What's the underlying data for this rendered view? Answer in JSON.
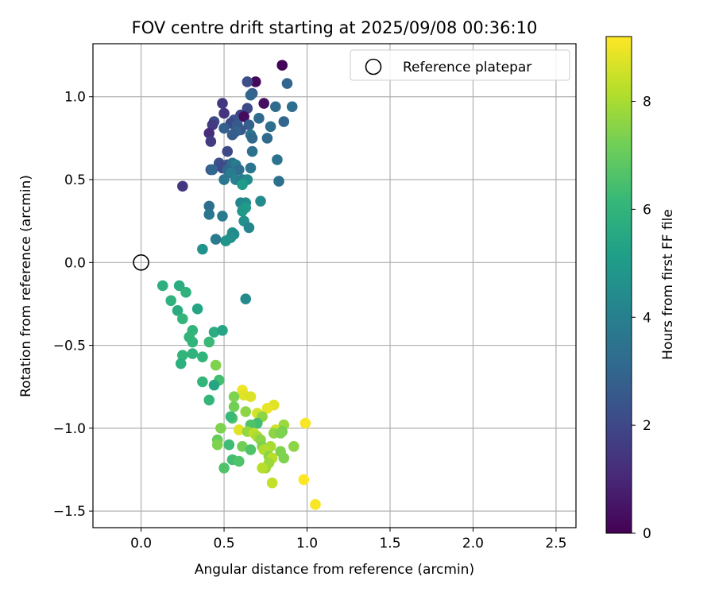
{
  "chart_data": {
    "type": "scatter",
    "title": "FOV centre drift starting at 2025/09/08 00:36:10",
    "xlabel": "Angular distance from reference (arcmin)",
    "ylabel": "Rotation from reference (arcmin)",
    "xlim": [
      -0.29,
      2.62
    ],
    "ylim": [
      -1.6,
      1.32
    ],
    "xticks": [
      "0.0",
      "0.5",
      "1.0",
      "1.5",
      "2.0",
      "2.5"
    ],
    "yticks": [
      "1.0",
      "0.5",
      "0.0",
      "−0.5",
      "−1.0",
      "−1.5"
    ],
    "grid": true,
    "legend": {
      "position": "top-right",
      "entries": [
        "Reference platepar"
      ]
    },
    "reference_point": {
      "x": 0.0,
      "y": 0.0
    },
    "colorbar": {
      "label": "Hours from first FF file",
      "colormap": "viridis",
      "range": [
        0,
        9.2
      ],
      "ticks": [
        "0",
        "2",
        "4",
        "6",
        "8"
      ]
    },
    "points": [
      {
        "x": 0.85,
        "y": 1.19,
        "c": 0.1
      },
      {
        "x": 0.69,
        "y": 1.09,
        "c": 0.2
      },
      {
        "x": 0.64,
        "y": 1.09,
        "c": 2.2
      },
      {
        "x": 0.88,
        "y": 1.08,
        "c": 3.0
      },
      {
        "x": 0.67,
        "y": 1.02,
        "c": 2.7
      },
      {
        "x": 0.66,
        "y": 1.01,
        "c": 3.0
      },
      {
        "x": 0.74,
        "y": 0.96,
        "c": 0.4
      },
      {
        "x": 0.49,
        "y": 0.96,
        "c": 1.5
      },
      {
        "x": 0.81,
        "y": 0.94,
        "c": 3.2
      },
      {
        "x": 0.91,
        "y": 0.94,
        "c": 3.3
      },
      {
        "x": 0.64,
        "y": 0.93,
        "c": 2.0
      },
      {
        "x": 0.5,
        "y": 0.9,
        "c": 1.4
      },
      {
        "x": 0.6,
        "y": 0.89,
        "c": 1.8
      },
      {
        "x": 0.62,
        "y": 0.88,
        "c": 0.3
      },
      {
        "x": 0.71,
        "y": 0.87,
        "c": 3.2
      },
      {
        "x": 0.56,
        "y": 0.86,
        "c": 2.3
      },
      {
        "x": 0.86,
        "y": 0.85,
        "c": 3.0
      },
      {
        "x": 0.44,
        "y": 0.85,
        "c": 2.1
      },
      {
        "x": 0.54,
        "y": 0.84,
        "c": 2.0
      },
      {
        "x": 0.43,
        "y": 0.83,
        "c": 1.6
      },
      {
        "x": 0.65,
        "y": 0.83,
        "c": 2.8
      },
      {
        "x": 0.58,
        "y": 0.83,
        "c": 2.6
      },
      {
        "x": 0.78,
        "y": 0.82,
        "c": 3.4
      },
      {
        "x": 0.5,
        "y": 0.81,
        "c": 2.8
      },
      {
        "x": 0.6,
        "y": 0.8,
        "c": 2.5
      },
      {
        "x": 0.57,
        "y": 0.79,
        "c": 2.9
      },
      {
        "x": 0.41,
        "y": 0.78,
        "c": 1.2
      },
      {
        "x": 0.66,
        "y": 0.77,
        "c": 3.5
      },
      {
        "x": 0.55,
        "y": 0.77,
        "c": 2.7
      },
      {
        "x": 0.67,
        "y": 0.75,
        "c": 3.1
      },
      {
        "x": 0.76,
        "y": 0.75,
        "c": 3.2
      },
      {
        "x": 0.42,
        "y": 0.73,
        "c": 1.6
      },
      {
        "x": 0.52,
        "y": 0.67,
        "c": 2.0
      },
      {
        "x": 0.67,
        "y": 0.67,
        "c": 3.4
      },
      {
        "x": 0.82,
        "y": 0.62,
        "c": 3.5
      },
      {
        "x": 0.47,
        "y": 0.6,
        "c": 2.2
      },
      {
        "x": 0.52,
        "y": 0.59,
        "c": 2.3
      },
      {
        "x": 0.55,
        "y": 0.6,
        "c": 3.4
      },
      {
        "x": 0.57,
        "y": 0.59,
        "c": 3.8
      },
      {
        "x": 0.49,
        "y": 0.57,
        "c": 2.0
      },
      {
        "x": 0.42,
        "y": 0.56,
        "c": 2.5
      },
      {
        "x": 0.43,
        "y": 0.56,
        "c": 3.0
      },
      {
        "x": 0.52,
        "y": 0.56,
        "c": 3.0
      },
      {
        "x": 0.59,
        "y": 0.56,
        "c": 3.3
      },
      {
        "x": 0.66,
        "y": 0.57,
        "c": 3.6
      },
      {
        "x": 0.54,
        "y": 0.54,
        "c": 3.8
      },
      {
        "x": 0.5,
        "y": 0.5,
        "c": 3.6
      },
      {
        "x": 0.57,
        "y": 0.5,
        "c": 4.0
      },
      {
        "x": 0.61,
        "y": 0.5,
        "c": 3.8
      },
      {
        "x": 0.64,
        "y": 0.5,
        "c": 4.4
      },
      {
        "x": 0.83,
        "y": 0.49,
        "c": 3.4
      },
      {
        "x": 0.61,
        "y": 0.47,
        "c": 5.0
      },
      {
        "x": 0.25,
        "y": 0.46,
        "c": 1.5
      },
      {
        "x": 0.72,
        "y": 0.37,
        "c": 4.4
      },
      {
        "x": 0.6,
        "y": 0.36,
        "c": 4.2
      },
      {
        "x": 0.63,
        "y": 0.36,
        "c": 4.4
      },
      {
        "x": 0.41,
        "y": 0.34,
        "c": 3.4
      },
      {
        "x": 0.63,
        "y": 0.33,
        "c": 5.0
      },
      {
        "x": 0.61,
        "y": 0.31,
        "c": 4.9
      },
      {
        "x": 0.41,
        "y": 0.29,
        "c": 3.6
      },
      {
        "x": 0.49,
        "y": 0.28,
        "c": 3.8
      },
      {
        "x": 0.62,
        "y": 0.25,
        "c": 4.6
      },
      {
        "x": 0.65,
        "y": 0.21,
        "c": 4.2
      },
      {
        "x": 0.55,
        "y": 0.18,
        "c": 4.7
      },
      {
        "x": 0.56,
        "y": 0.17,
        "c": 4.4
      },
      {
        "x": 0.54,
        "y": 0.15,
        "c": 4.6
      },
      {
        "x": 0.51,
        "y": 0.13,
        "c": 4.8
      },
      {
        "x": 0.45,
        "y": 0.14,
        "c": 3.8
      },
      {
        "x": 0.37,
        "y": 0.08,
        "c": 4.7
      },
      {
        "x": 0.13,
        "y": -0.14,
        "c": 5.8
      },
      {
        "x": 0.23,
        "y": -0.14,
        "c": 5.7
      },
      {
        "x": 0.27,
        "y": -0.18,
        "c": 5.9
      },
      {
        "x": 0.63,
        "y": -0.22,
        "c": 4.4
      },
      {
        "x": 0.18,
        "y": -0.23,
        "c": 5.9
      },
      {
        "x": 0.34,
        "y": -0.28,
        "c": 5.4
      },
      {
        "x": 0.22,
        "y": -0.29,
        "c": 5.6
      },
      {
        "x": 0.25,
        "y": -0.34,
        "c": 6.0
      },
      {
        "x": 0.31,
        "y": -0.41,
        "c": 6.0
      },
      {
        "x": 0.44,
        "y": -0.42,
        "c": 5.7
      },
      {
        "x": 0.49,
        "y": -0.41,
        "c": 5.4
      },
      {
        "x": 0.29,
        "y": -0.45,
        "c": 6.0
      },
      {
        "x": 0.31,
        "y": -0.48,
        "c": 6.0
      },
      {
        "x": 0.41,
        "y": -0.48,
        "c": 6.2
      },
      {
        "x": 0.25,
        "y": -0.56,
        "c": 6.0
      },
      {
        "x": 0.31,
        "y": -0.55,
        "c": 5.9
      },
      {
        "x": 0.37,
        "y": -0.57,
        "c": 6.0
      },
      {
        "x": 0.24,
        "y": -0.61,
        "c": 5.8
      },
      {
        "x": 0.45,
        "y": -0.62,
        "c": 7.4
      },
      {
        "x": 0.47,
        "y": -0.71,
        "c": 6.4
      },
      {
        "x": 0.37,
        "y": -0.72,
        "c": 6.0
      },
      {
        "x": 0.44,
        "y": -0.74,
        "c": 5.4
      },
      {
        "x": 0.61,
        "y": -0.77,
        "c": 9.0
      },
      {
        "x": 0.62,
        "y": -0.8,
        "c": 8.8
      },
      {
        "x": 0.66,
        "y": -0.81,
        "c": 8.7
      },
      {
        "x": 0.56,
        "y": -0.81,
        "c": 7.4
      },
      {
        "x": 0.41,
        "y": -0.83,
        "c": 6.1
      },
      {
        "x": 0.8,
        "y": -0.86,
        "c": 8.8
      },
      {
        "x": 0.56,
        "y": -0.87,
        "c": 7.2
      },
      {
        "x": 0.76,
        "y": -0.88,
        "c": 8.9
      },
      {
        "x": 0.63,
        "y": -0.9,
        "c": 7.6
      },
      {
        "x": 0.7,
        "y": -0.91,
        "c": 8.6
      },
      {
        "x": 0.55,
        "y": -0.94,
        "c": 6.7
      },
      {
        "x": 0.54,
        "y": -0.93,
        "c": 6.2
      },
      {
        "x": 0.73,
        "y": -0.93,
        "c": 7.6
      },
      {
        "x": 0.99,
        "y": -0.97,
        "c": 9.1
      },
      {
        "x": 0.7,
        "y": -0.97,
        "c": 6.4
      },
      {
        "x": 0.66,
        "y": -0.98,
        "c": 6.6
      },
      {
        "x": 0.86,
        "y": -0.98,
        "c": 7.8
      },
      {
        "x": 0.48,
        "y": -1.0,
        "c": 7.4
      },
      {
        "x": 0.59,
        "y": -1.01,
        "c": 8.8
      },
      {
        "x": 0.81,
        "y": -1.01,
        "c": 8.6
      },
      {
        "x": 0.85,
        "y": -1.02,
        "c": 7.2
      },
      {
        "x": 0.8,
        "y": -1.03,
        "c": 7.6
      },
      {
        "x": 0.84,
        "y": -1.03,
        "c": 7.4
      },
      {
        "x": 0.64,
        "y": -1.02,
        "c": 7.7
      },
      {
        "x": 0.68,
        "y": -1.03,
        "c": 8.3
      },
      {
        "x": 0.7,
        "y": -1.05,
        "c": 8.0
      },
      {
        "x": 0.72,
        "y": -1.07,
        "c": 7.6
      },
      {
        "x": 0.46,
        "y": -1.07,
        "c": 7.0
      },
      {
        "x": 0.46,
        "y": -1.1,
        "c": 7.4
      },
      {
        "x": 0.53,
        "y": -1.1,
        "c": 6.3
      },
      {
        "x": 0.61,
        "y": -1.11,
        "c": 7.2
      },
      {
        "x": 0.73,
        "y": -1.11,
        "c": 7.4
      },
      {
        "x": 0.78,
        "y": -1.11,
        "c": 8.0
      },
      {
        "x": 0.92,
        "y": -1.11,
        "c": 7.6
      },
      {
        "x": 0.66,
        "y": -1.13,
        "c": 6.6
      },
      {
        "x": 0.84,
        "y": -1.14,
        "c": 7.4
      },
      {
        "x": 0.74,
        "y": -1.13,
        "c": 8.1
      },
      {
        "x": 0.77,
        "y": -1.17,
        "c": 7.6
      },
      {
        "x": 0.79,
        "y": -1.18,
        "c": 8.2
      },
      {
        "x": 0.86,
        "y": -1.18,
        "c": 7.4
      },
      {
        "x": 0.55,
        "y": -1.19,
        "c": 6.4
      },
      {
        "x": 0.59,
        "y": -1.2,
        "c": 6.6
      },
      {
        "x": 0.77,
        "y": -1.21,
        "c": 7.8
      },
      {
        "x": 0.75,
        "y": -1.24,
        "c": 7.8
      },
      {
        "x": 0.5,
        "y": -1.24,
        "c": 6.6
      },
      {
        "x": 0.73,
        "y": -1.24,
        "c": 8.2
      },
      {
        "x": 0.98,
        "y": -1.31,
        "c": 9.2
      },
      {
        "x": 0.79,
        "y": -1.33,
        "c": 8.4
      },
      {
        "x": 1.05,
        "y": -1.46,
        "c": 9.1
      }
    ]
  }
}
